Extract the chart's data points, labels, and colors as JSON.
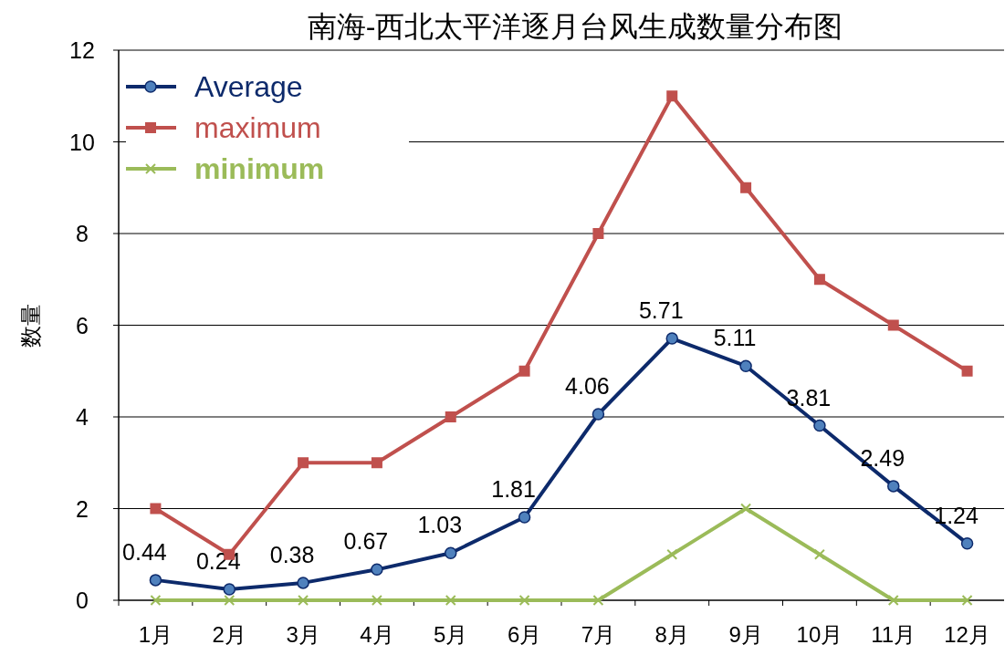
{
  "chart_data": {
    "type": "line",
    "title": "南海-西北太平洋逐月台风生成数量分布图",
    "ylabel": "数量",
    "categories": [
      "1月",
      "2月",
      "3月",
      "4月",
      "5月",
      "6月",
      "7月",
      "8月",
      "9月",
      "10月",
      "11月",
      "12月"
    ],
    "series": [
      {
        "name": "Average",
        "color": "#0d2a6b",
        "marker": "circle",
        "values": [
          0.44,
          0.24,
          0.38,
          0.67,
          1.03,
          1.81,
          4.06,
          5.71,
          5.11,
          3.81,
          2.49,
          1.24
        ],
        "value_labels": [
          "0.44",
          "0.24",
          "0.38",
          "0.67",
          "1.03",
          "1.81",
          "4.06",
          "5.71",
          "5.11",
          "3.81",
          "2.49",
          "1.24"
        ]
      },
      {
        "name": " maximum",
        "color": "#c0504d",
        "marker": "square",
        "values": [
          2,
          1,
          3,
          3,
          4,
          5,
          8,
          11,
          9,
          7,
          6,
          5
        ]
      },
      {
        "name": "minimum",
        "color": "#9bbb59",
        "marker": "cross",
        "values": [
          0,
          0,
          0,
          0,
          0,
          0,
          0,
          1,
          2,
          1,
          0,
          0
        ]
      }
    ],
    "ylim": [
      0,
      12
    ],
    "yticks": [
      0,
      2,
      4,
      6,
      8,
      10,
      12
    ],
    "grid": "y",
    "legend": "top left"
  }
}
